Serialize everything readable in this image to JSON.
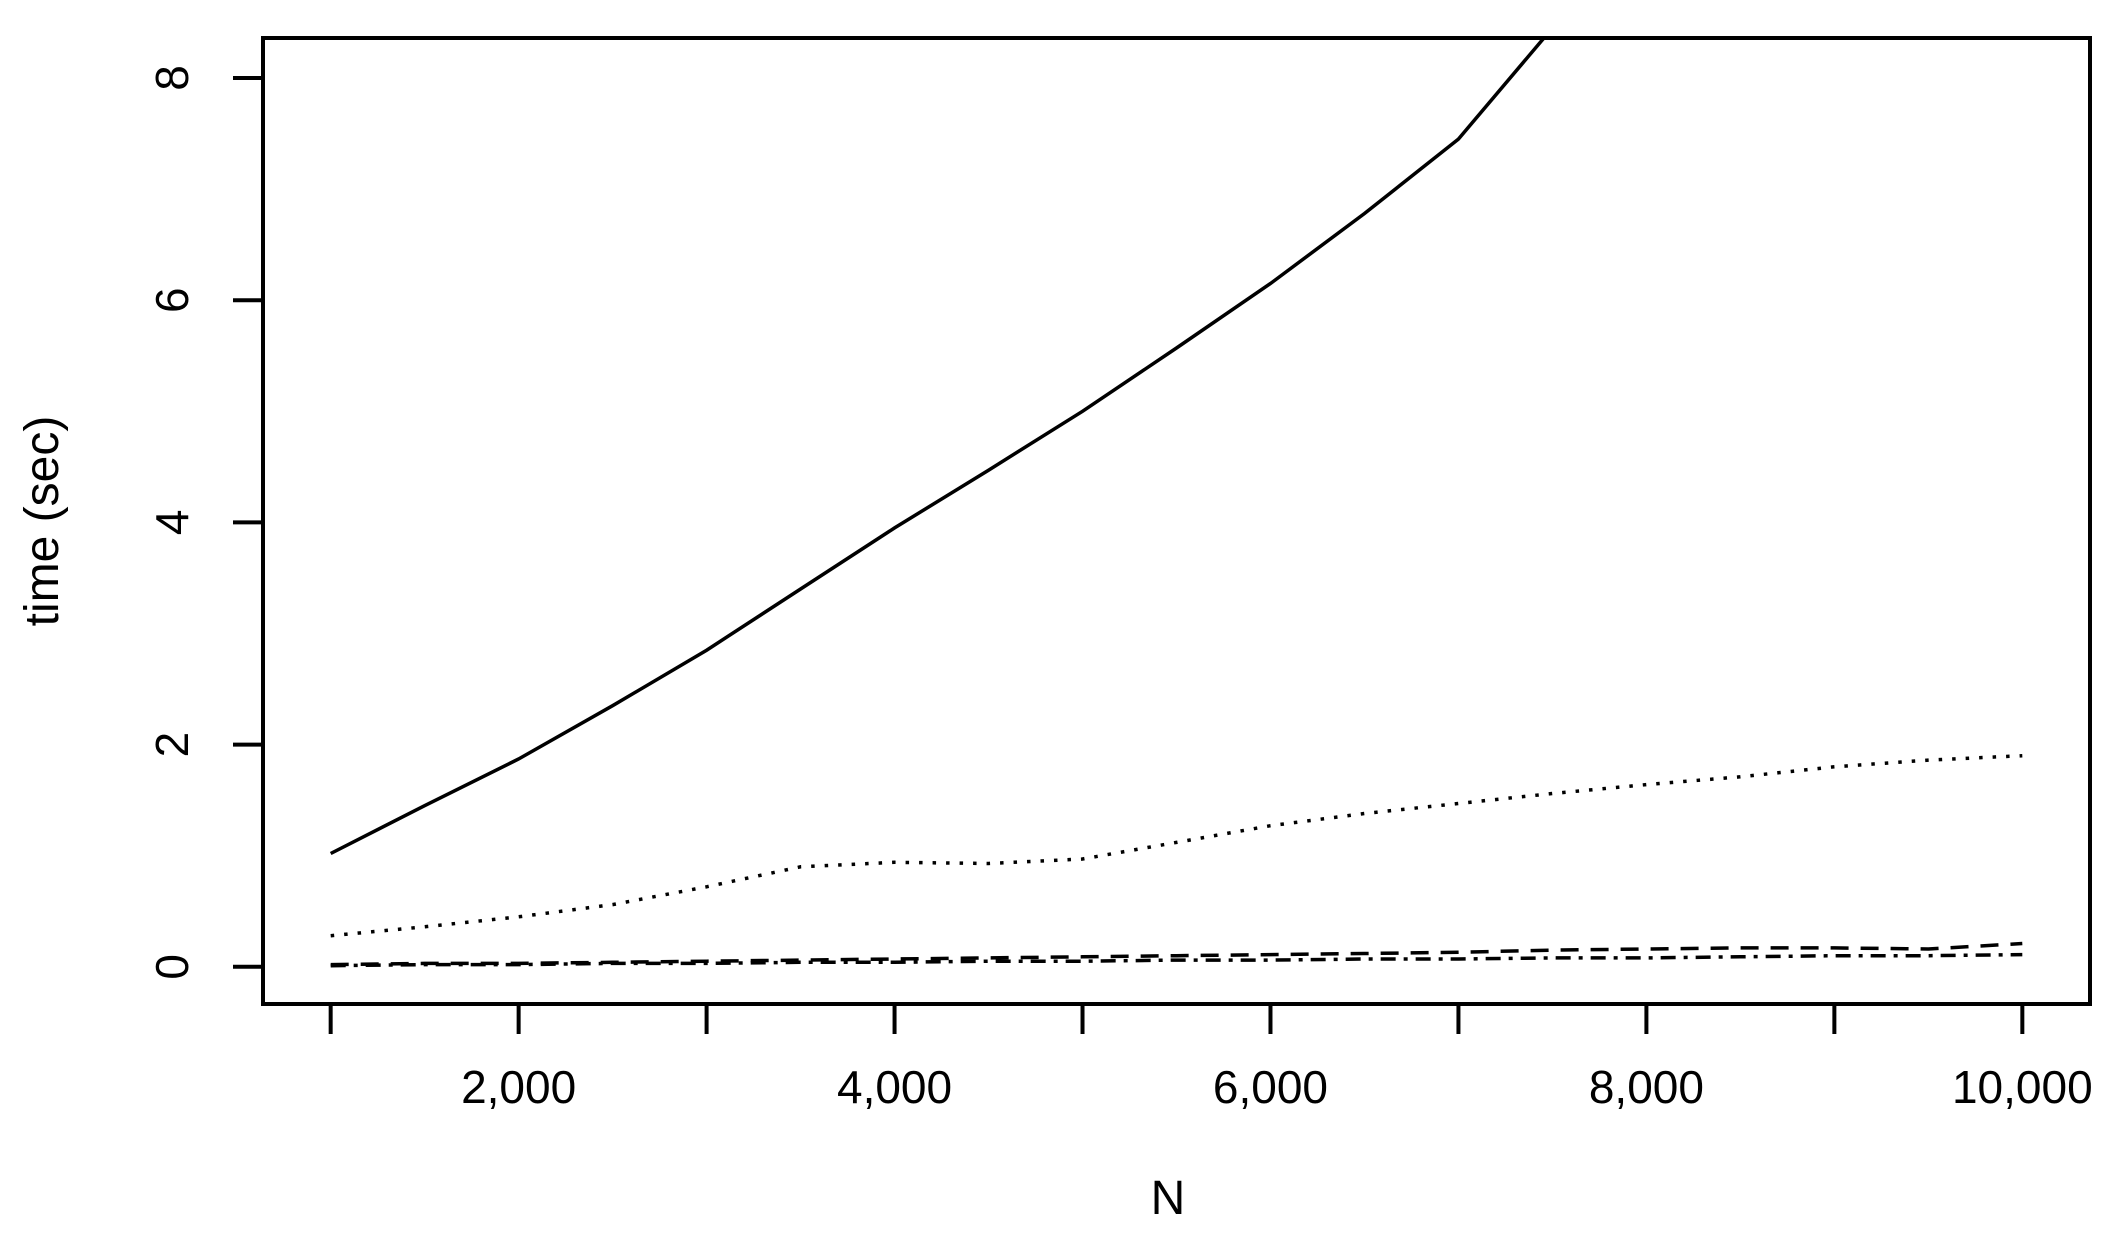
{
  "figure": {
    "background": "#ffffff",
    "line_color": "#000000",
    "text_color": "#000000"
  },
  "chart_data": {
    "type": "line",
    "title": "",
    "xlabel": "N",
    "ylabel": "time (sec)",
    "grid": false,
    "legend": false,
    "xlim": [
      640,
      10360
    ],
    "ylim": [
      -0.335,
      8.36
    ],
    "x_ticks": [
      1000,
      2000,
      3000,
      4000,
      5000,
      6000,
      7000,
      8000,
      9000,
      10000
    ],
    "x_tick_labels": [
      "",
      "2,000",
      "",
      "4,000",
      "",
      "6,000",
      "",
      "8,000",
      "",
      "10,000"
    ],
    "y_ticks": [
      0,
      2,
      4,
      6,
      8
    ],
    "y_tick_labels": [
      "0",
      "2",
      "4",
      "6",
      "8"
    ],
    "series": [
      {
        "name": "solid-line",
        "style": "solid",
        "note": "exits top of plot box near N=7500",
        "x": [
          1000,
          1500,
          2000,
          2500,
          3000,
          3500,
          4000,
          4500,
          5000,
          5500,
          6000,
          6500,
          7000,
          7500
        ],
        "y": [
          1.02,
          1.45,
          1.87,
          2.35,
          2.85,
          3.4,
          3.95,
          4.47,
          5.0,
          5.57,
          6.15,
          6.78,
          7.45,
          8.45
        ]
      },
      {
        "name": "dotted-line",
        "style": "dotted",
        "x": [
          1000,
          1500,
          2000,
          2500,
          3000,
          3500,
          4000,
          4500,
          5000,
          5500,
          6000,
          6500,
          7000,
          7500,
          8000,
          8500,
          9000,
          9500,
          10000
        ],
        "y": [
          0.28,
          0.36,
          0.45,
          0.56,
          0.72,
          0.9,
          0.94,
          0.93,
          0.97,
          1.12,
          1.27,
          1.38,
          1.47,
          1.56,
          1.64,
          1.71,
          1.8,
          1.86,
          1.9
        ]
      },
      {
        "name": "dashed-line",
        "style": "dashed",
        "x": [
          1000,
          1500,
          2000,
          2500,
          3000,
          3500,
          4000,
          4500,
          5000,
          5500,
          6000,
          6500,
          7000,
          7500,
          8000,
          8500,
          9000,
          9500,
          10000
        ],
        "y": [
          0.02,
          0.03,
          0.03,
          0.04,
          0.05,
          0.06,
          0.07,
          0.08,
          0.09,
          0.1,
          0.11,
          0.12,
          0.13,
          0.15,
          0.16,
          0.17,
          0.17,
          0.16,
          0.21
        ]
      },
      {
        "name": "dash-dot-line",
        "style": "dashdot",
        "x": [
          1000,
          1500,
          2000,
          2500,
          3000,
          3500,
          4000,
          4500,
          5000,
          5500,
          6000,
          6500,
          7000,
          7500,
          8000,
          8500,
          9000,
          9500,
          10000
        ],
        "y": [
          0.01,
          0.02,
          0.02,
          0.03,
          0.03,
          0.04,
          0.04,
          0.05,
          0.05,
          0.06,
          0.06,
          0.07,
          0.07,
          0.08,
          0.08,
          0.09,
          0.1,
          0.1,
          0.11
        ]
      }
    ]
  }
}
